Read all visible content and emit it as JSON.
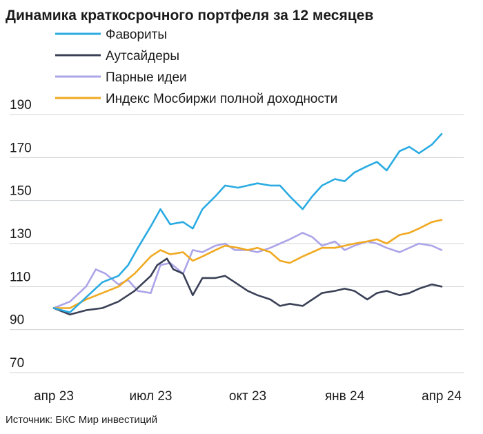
{
  "chart_data": {
    "type": "line",
    "title": "Динамика краткосрочного портфеля за 12 месяцев",
    "xlabel": "",
    "ylabel": "",
    "ylim": [
      70,
      190
    ],
    "yticks": [
      70,
      90,
      110,
      130,
      150,
      170,
      190
    ],
    "xticks": [
      {
        "label": "апр 23",
        "t": 0
      },
      {
        "label": "июл 23",
        "t": 3
      },
      {
        "label": "окт 23",
        "t": 6
      },
      {
        "label": "янв 24",
        "t": 9
      },
      {
        "label": "апр 24",
        "t": 12
      }
    ],
    "grid": true,
    "legend_position": "top-left",
    "source": "Источник: БКС Мир инвестиций",
    "series": [
      {
        "name": "Фавориты",
        "color": "#29ABE2",
        "points": [
          [
            0,
            100
          ],
          [
            0.5,
            98
          ],
          [
            1,
            105
          ],
          [
            1.5,
            112
          ],
          [
            2,
            115
          ],
          [
            2.3,
            120
          ],
          [
            2.6,
            128
          ],
          [
            3,
            138
          ],
          [
            3.3,
            146
          ],
          [
            3.6,
            139
          ],
          [
            4,
            140
          ],
          [
            4.3,
            137
          ],
          [
            4.6,
            146
          ],
          [
            5,
            152
          ],
          [
            5.3,
            157
          ],
          [
            5.7,
            156
          ],
          [
            6,
            157
          ],
          [
            6.3,
            158
          ],
          [
            6.7,
            157
          ],
          [
            7,
            157
          ],
          [
            7.3,
            152
          ],
          [
            7.7,
            146
          ],
          [
            8,
            152
          ],
          [
            8.3,
            157
          ],
          [
            8.7,
            160
          ],
          [
            9,
            159
          ],
          [
            9.3,
            163
          ],
          [
            9.7,
            166
          ],
          [
            10,
            168
          ],
          [
            10.3,
            164
          ],
          [
            10.7,
            173
          ],
          [
            11,
            175
          ],
          [
            11.3,
            172
          ],
          [
            11.7,
            176
          ],
          [
            12,
            181
          ]
        ]
      },
      {
        "name": "Аутсайдеры",
        "color": "#3A4156",
        "points": [
          [
            0,
            100
          ],
          [
            0.5,
            97
          ],
          [
            1,
            99
          ],
          [
            1.5,
            100
          ],
          [
            2,
            103
          ],
          [
            2.5,
            108
          ],
          [
            3,
            115
          ],
          [
            3.2,
            120
          ],
          [
            3.5,
            123
          ],
          [
            3.7,
            118
          ],
          [
            4,
            116
          ],
          [
            4.3,
            106
          ],
          [
            4.6,
            114
          ],
          [
            5,
            114
          ],
          [
            5.3,
            115
          ],
          [
            5.6,
            112
          ],
          [
            6,
            108
          ],
          [
            6.3,
            106
          ],
          [
            6.7,
            104
          ],
          [
            7,
            101
          ],
          [
            7.3,
            102
          ],
          [
            7.7,
            101
          ],
          [
            8,
            104
          ],
          [
            8.3,
            107
          ],
          [
            8.7,
            108
          ],
          [
            9,
            109
          ],
          [
            9.3,
            108
          ],
          [
            9.7,
            104
          ],
          [
            10,
            107
          ],
          [
            10.3,
            108
          ],
          [
            10.7,
            106
          ],
          [
            11,
            107
          ],
          [
            11.3,
            109
          ],
          [
            11.7,
            111
          ],
          [
            12,
            110
          ]
        ]
      },
      {
        "name": "Парные идеи",
        "color": "#ABA4E8",
        "points": [
          [
            0,
            100
          ],
          [
            0.5,
            103
          ],
          [
            1,
            110
          ],
          [
            1.3,
            118
          ],
          [
            1.6,
            116
          ],
          [
            2,
            111
          ],
          [
            2.3,
            113
          ],
          [
            2.6,
            108
          ],
          [
            3,
            107
          ],
          [
            3.3,
            120
          ],
          [
            3.6,
            121
          ],
          [
            4,
            116
          ],
          [
            4.3,
            127
          ],
          [
            4.6,
            126
          ],
          [
            5,
            129
          ],
          [
            5.3,
            130
          ],
          [
            5.6,
            127
          ],
          [
            6,
            127
          ],
          [
            6.3,
            126
          ],
          [
            6.7,
            128
          ],
          [
            7,
            130
          ],
          [
            7.3,
            132
          ],
          [
            7.7,
            135
          ],
          [
            8,
            133
          ],
          [
            8.3,
            129
          ],
          [
            8.7,
            131
          ],
          [
            9,
            127
          ],
          [
            9.3,
            129
          ],
          [
            9.7,
            131
          ],
          [
            10,
            130
          ],
          [
            10.3,
            128
          ],
          [
            10.7,
            126
          ],
          [
            11,
            128
          ],
          [
            11.3,
            130
          ],
          [
            11.7,
            129
          ],
          [
            12,
            127
          ]
        ]
      },
      {
        "name": "Индекс Мосбиржи полной доходности",
        "color": "#F0A920",
        "points": [
          [
            0,
            100
          ],
          [
            0.5,
            100
          ],
          [
            1,
            104
          ],
          [
            1.5,
            107
          ],
          [
            2,
            110
          ],
          [
            2.5,
            116
          ],
          [
            3,
            124
          ],
          [
            3.3,
            127
          ],
          [
            3.6,
            125
          ],
          [
            4,
            126
          ],
          [
            4.3,
            122
          ],
          [
            4.6,
            124
          ],
          [
            5,
            127
          ],
          [
            5.3,
            129
          ],
          [
            5.7,
            128
          ],
          [
            6,
            127
          ],
          [
            6.3,
            128
          ],
          [
            6.7,
            126
          ],
          [
            7,
            122
          ],
          [
            7.3,
            121
          ],
          [
            7.7,
            124
          ],
          [
            8,
            126
          ],
          [
            8.3,
            128
          ],
          [
            8.7,
            128
          ],
          [
            9,
            129
          ],
          [
            9.3,
            130
          ],
          [
            9.7,
            131
          ],
          [
            10,
            132
          ],
          [
            10.3,
            130
          ],
          [
            10.7,
            134
          ],
          [
            11,
            135
          ],
          [
            11.3,
            137
          ],
          [
            11.7,
            140
          ],
          [
            12,
            141
          ]
        ]
      }
    ]
  }
}
